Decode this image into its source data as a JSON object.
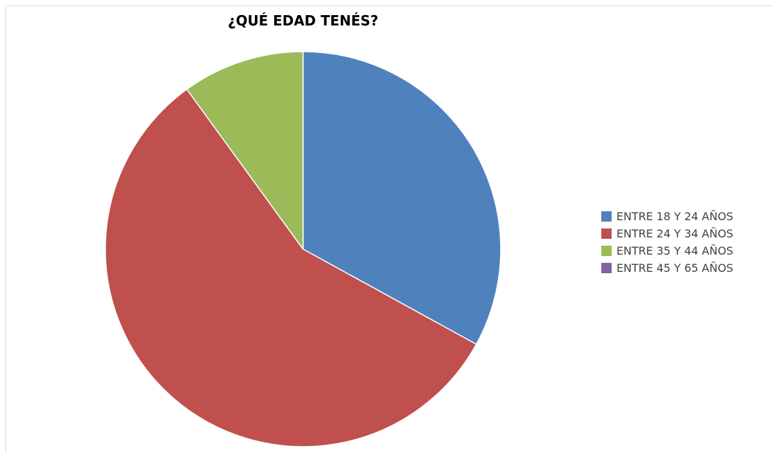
{
  "chart_data": {
    "type": "pie",
    "title": "¿QUÉ EDAD TENÉS?",
    "categories": [
      "ENTRE 18 Y 24 AÑOS",
      "ENTRE 24 Y 34 AÑOS",
      "ENTRE 35 Y 44 AÑOS",
      "ENTRE 45 Y 65 AÑOS"
    ],
    "values": [
      33,
      57,
      10,
      0
    ],
    "colors": [
      "#4f81bd",
      "#c0504d",
      "#9bbb59",
      "#8064a2"
    ],
    "start_angle": "12 o'clock",
    "direction": "clockwise",
    "legend_position": "right"
  }
}
